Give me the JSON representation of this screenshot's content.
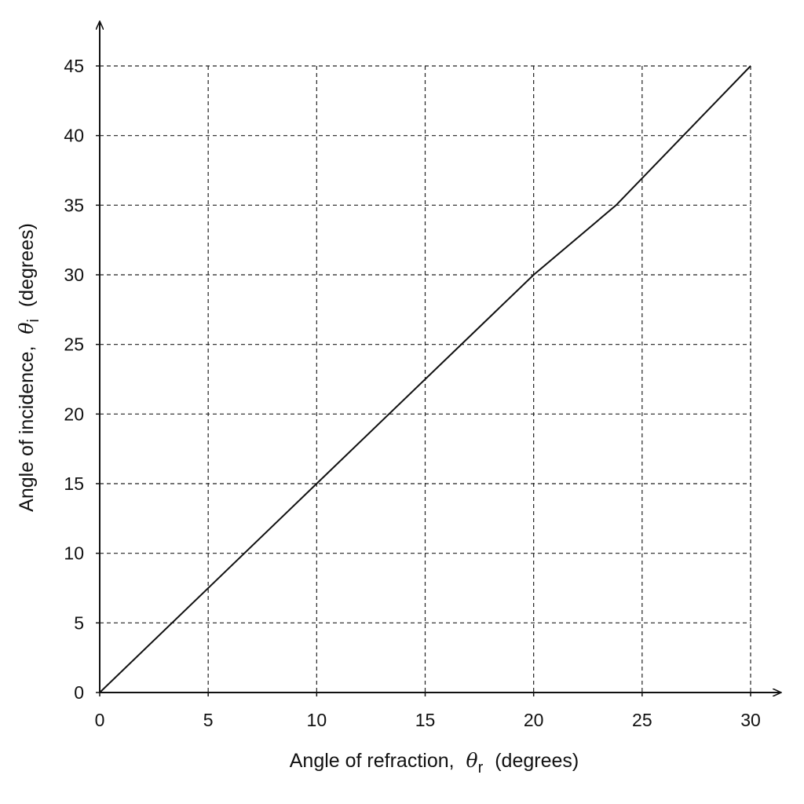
{
  "chart_data": {
    "type": "line",
    "xlabel": {
      "prefix": "Angle of refraction,",
      "symbol": "θ",
      "subscript": "r",
      "suffix": "(degrees)"
    },
    "ylabel": {
      "prefix": "Angle of incidence,",
      "symbol": "θ",
      "subscript": "i",
      "suffix": "(degrees)"
    },
    "xlim": [
      0,
      30
    ],
    "ylim": [
      0,
      45
    ],
    "xticks": [
      0,
      5,
      10,
      15,
      20,
      25,
      30
    ],
    "yticks": [
      0,
      5,
      10,
      15,
      20,
      25,
      30,
      35,
      40,
      45
    ],
    "grid": true,
    "grid_style": "dashed",
    "line_color": "#111111",
    "series": [
      {
        "x": [
          0,
          10,
          20,
          23.8,
          30
        ],
        "y": [
          0,
          15,
          30,
          35,
          45
        ]
      }
    ]
  }
}
